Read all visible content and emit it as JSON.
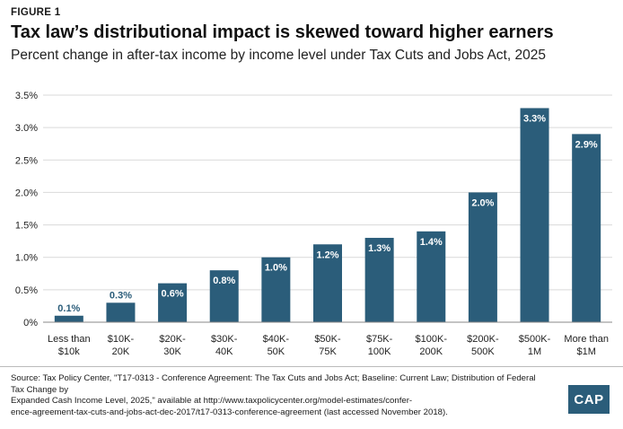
{
  "figure_label": "FIGURE 1",
  "title": "Tax law’s distributional impact is skewed toward higher earners",
  "subtitle": "Percent change in after-tax income by income level under Tax Cuts and Jobs Act, 2025",
  "source_lines": [
    "Source: Tax Policy Center, \"T17-0313 - Conference Agreement: The Tax Cuts and Jobs Act; Baseline: Current Law; Distribution of Federal Tax Change by",
    "Expanded Cash Income Level, 2025,\" available at http://www.taxpolicycenter.org/model-estimates/confer-",
    "ence-agreement-tax-cuts-and-jobs-act-dec-2017/t17-0313-conference-agreement (last accessed November 2018)."
  ],
  "logo_text": "CAP",
  "colors": {
    "bar": "#2b5d7a",
    "grid": "#d9d9d9",
    "axis": "#888888"
  },
  "chart_data": {
    "type": "bar",
    "categories": [
      [
        "Less than",
        "$10k"
      ],
      [
        "$10K-",
        "20K"
      ],
      [
        "$20K-",
        "30K"
      ],
      [
        "$30K-",
        "40K"
      ],
      [
        "$40K-",
        "50K"
      ],
      [
        "$50K-",
        "75K"
      ],
      [
        "$75K-",
        "100K"
      ],
      [
        "$100K-",
        "200K"
      ],
      [
        "$200K-",
        "500K"
      ],
      [
        "$500K-",
        "1M"
      ],
      [
        "More than",
        "$1M"
      ]
    ],
    "values": [
      0.1,
      0.3,
      0.6,
      0.8,
      1.0,
      1.2,
      1.3,
      1.4,
      2.0,
      3.3,
      2.9
    ],
    "data_labels": [
      "0.1%",
      "0.3%",
      "0.6%",
      "0.8%",
      "1.0%",
      "1.2%",
      "1.3%",
      "1.4%",
      "2.0%",
      "3.3%",
      "2.9%"
    ],
    "yticks": [
      0,
      0.5,
      1.0,
      1.5,
      2.0,
      2.5,
      3.0,
      3.5
    ],
    "ytick_labels": [
      "0%",
      "0.5%",
      "1.0%",
      "1.5%",
      "2.0%",
      "2.5%",
      "3.0%",
      "3.5%"
    ],
    "ylim": [
      0,
      3.5
    ],
    "grid": true,
    "xlabel": "",
    "ylabel": ""
  }
}
